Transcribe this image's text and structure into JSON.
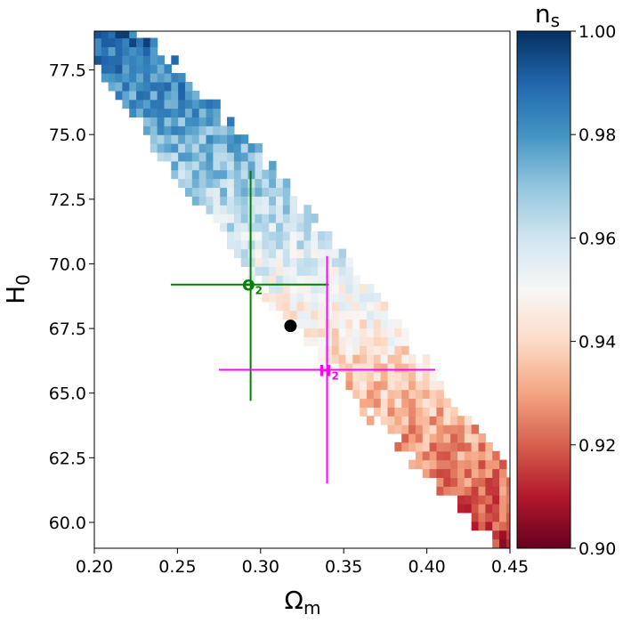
{
  "chart_data": {
    "type": "heatmap",
    "xlabel": "Ω",
    "xlabel_sub": "m",
    "ylabel": "H",
    "ylabel_sub": "0",
    "xlim": [
      0.2,
      0.45
    ],
    "ylim": [
      59.0,
      79.0
    ],
    "xticks": [
      "0.20",
      "0.25",
      "0.30",
      "0.35",
      "0.40",
      "0.45"
    ],
    "yticks": [
      "60.0",
      "62.5",
      "65.0",
      "67.5",
      "70.0",
      "72.5",
      "75.0",
      "77.5"
    ],
    "colorbar": {
      "title": "n",
      "title_sub": "s",
      "range": [
        0.9,
        1.0
      ],
      "ticks": [
        "1.00",
        "0.98",
        "0.96",
        "0.94",
        "0.92",
        "0.90"
      ],
      "colormap": "RdBu",
      "colors": [
        "#67001f",
        "#b2182b",
        "#d6604d",
        "#f4a582",
        "#fddbc7",
        "#f7f7f7",
        "#d1e5f0",
        "#92c5de",
        "#4393c3",
        "#2166ac",
        "#053061"
      ]
    },
    "cell_size": {
      "omega_m": 0.0042,
      "h0": 0.34
    },
    "band": {
      "center_line": [
        [
          0.2,
          79.0
        ],
        [
          0.45,
          59.8
        ]
      ],
      "ns_trend": [
        [
          0.2,
          0.99
        ],
        [
          0.32,
          0.955
        ],
        [
          0.45,
          0.918
        ]
      ]
    },
    "markers": [
      {
        "label": "Θ",
        "label_sub": "2",
        "omega_m": 0.294,
        "h0": 69.2,
        "omega_m_range": [
          0.246,
          0.341
        ],
        "h0_range": [
          64.7,
          73.6
        ],
        "color": "#008000"
      },
      {
        "label": "H",
        "label_sub": "2",
        "omega_m": 0.34,
        "h0": 65.9,
        "omega_m_range": [
          0.275,
          0.405
        ],
        "h0_range": [
          61.5,
          70.3
        ],
        "color": "#ff00ff"
      }
    ],
    "point": {
      "omega_m": 0.318,
      "h0": 67.6,
      "color": "#000000"
    }
  }
}
